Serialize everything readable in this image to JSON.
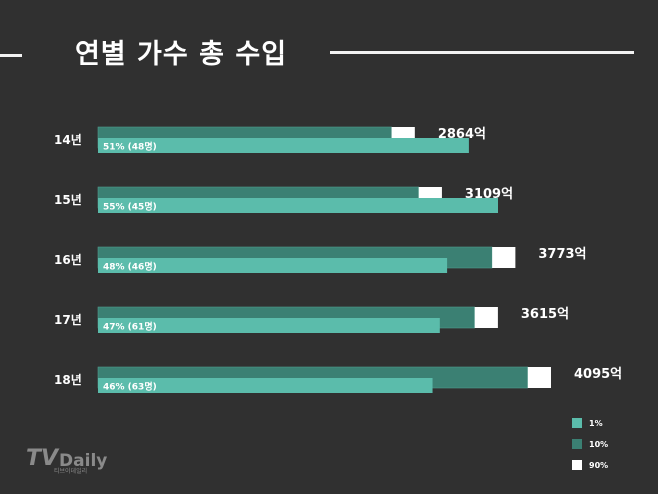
{
  "header": {
    "title": "연별 가수 총 수입"
  },
  "chart_data": {
    "type": "bar",
    "title": "연별 가수 총 수입",
    "categories": [
      "14년",
      "15년",
      "16년",
      "17년",
      "18년"
    ],
    "totals": [
      2864,
      3109,
      3773,
      3615,
      4095
    ],
    "total_labels": [
      "2864억",
      "3109억",
      "3773억",
      "3615억",
      "4095억"
    ],
    "series": [
      {
        "name": "1%",
        "share_percent": [
          51,
          55,
          48,
          47,
          46
        ],
        "labels": [
          "51% (48명)",
          "55% (45명)",
          "48% (46명)",
          "47% (61명)",
          "46% (63명)"
        ]
      },
      {
        "name": "10%"
      },
      {
        "name": "90%"
      }
    ],
    "colors": {
      "1%": "#5bbcab",
      "10%": "#3b8073",
      "90%": "#ffffff"
    },
    "legend_position": "bottom-right",
    "grid": false
  },
  "logo": {
    "main_a": "TV",
    "main_b": "Daily",
    "sub": "티브이데일리"
  }
}
